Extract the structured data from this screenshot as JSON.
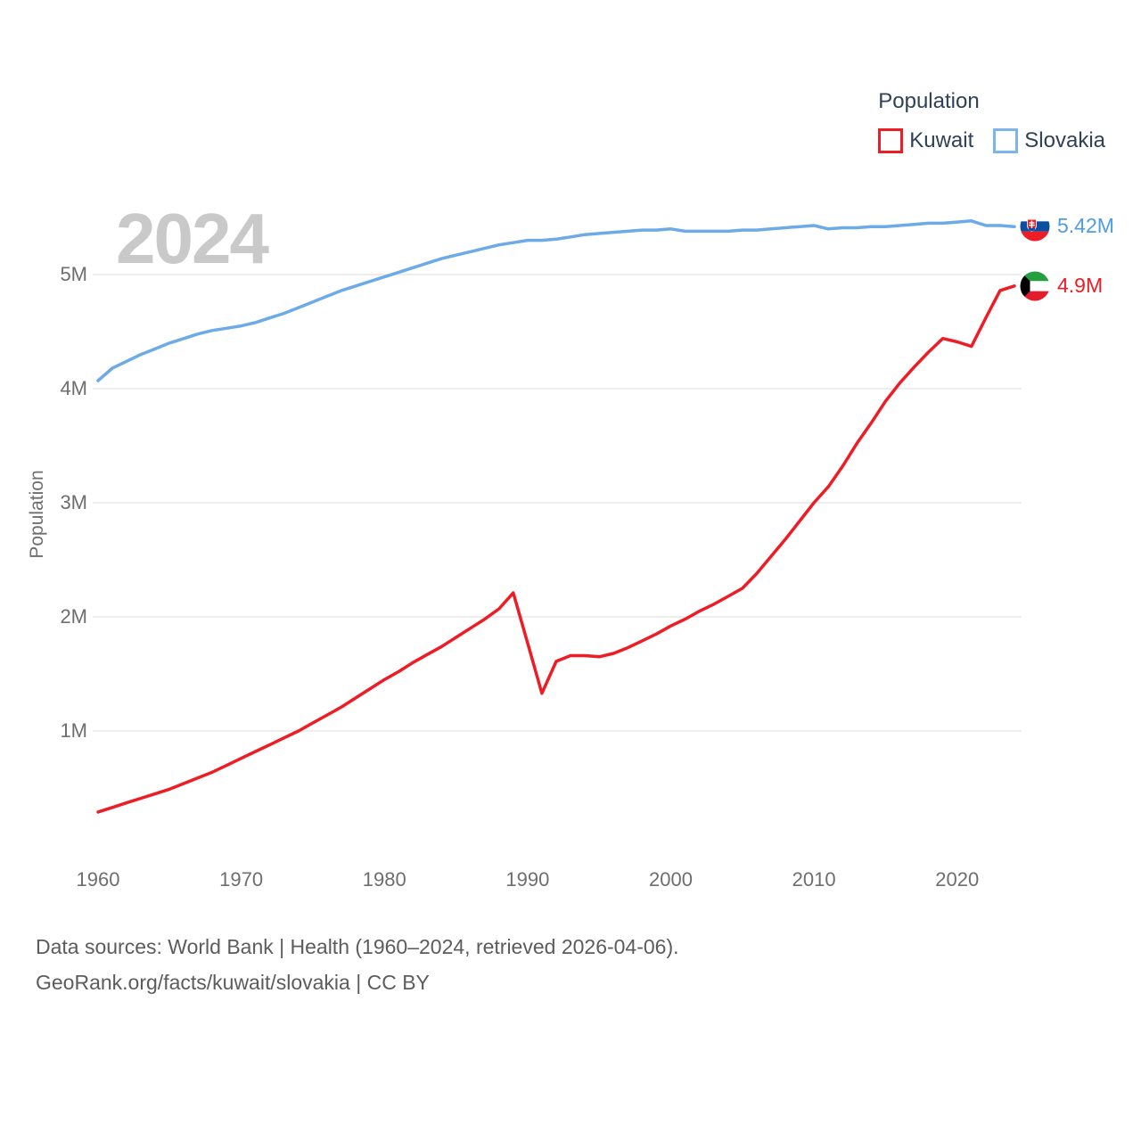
{
  "watermark": "2024",
  "legend": {
    "title": "Population",
    "items": [
      {
        "label": "Kuwait",
        "color": "#ee1c25"
      },
      {
        "label": "Slovakia",
        "color": "#7cb5ec"
      }
    ]
  },
  "chart_data": {
    "type": "line",
    "title": "Population",
    "xlabel": "",
    "ylabel": "Population",
    "grid": true,
    "legend_position": "top-right",
    "xlim": [
      1960,
      2024
    ],
    "ylim": [
      0,
      5.65
    ],
    "x_ticks": [
      1960,
      1970,
      1980,
      1990,
      2000,
      2010,
      2020
    ],
    "y_ticks": [
      "1M",
      "2M",
      "3M",
      "4M",
      "5M"
    ],
    "y_tick_values": [
      1,
      2,
      3,
      4,
      5
    ],
    "years": [
      1960,
      1961,
      1962,
      1963,
      1964,
      1965,
      1966,
      1967,
      1968,
      1969,
      1970,
      1971,
      1972,
      1973,
      1974,
      1975,
      1976,
      1977,
      1978,
      1979,
      1980,
      1981,
      1982,
      1983,
      1984,
      1985,
      1986,
      1987,
      1988,
      1989,
      1990,
      1991,
      1992,
      1993,
      1994,
      1995,
      1996,
      1997,
      1998,
      1999,
      2000,
      2001,
      2002,
      2003,
      2004,
      2005,
      2006,
      2007,
      2008,
      2009,
      2010,
      2011,
      2012,
      2013,
      2014,
      2015,
      2016,
      2017,
      2018,
      2019,
      2020,
      2021,
      2022,
      2023,
      2024
    ],
    "series": [
      {
        "name": "Kuwait",
        "flag": "kuwait",
        "color": "#ee1c25",
        "label_color": "#ee1c25",
        "end_label": "4.9M",
        "values": [
          0.29,
          0.33,
          0.37,
          0.41,
          0.45,
          0.49,
          0.54,
          0.59,
          0.64,
          0.7,
          0.76,
          0.82,
          0.88,
          0.94,
          1.0,
          1.07,
          1.14,
          1.21,
          1.29,
          1.37,
          1.45,
          1.52,
          1.6,
          1.67,
          1.74,
          1.82,
          1.9,
          1.98,
          2.07,
          2.21,
          1.77,
          1.33,
          1.61,
          1.66,
          1.66,
          1.65,
          1.68,
          1.73,
          1.79,
          1.85,
          1.92,
          1.98,
          2.05,
          2.11,
          2.18,
          2.25,
          2.38,
          2.53,
          2.68,
          2.84,
          3.0,
          3.14,
          3.32,
          3.52,
          3.7,
          3.89,
          4.05,
          4.19,
          4.32,
          4.44,
          4.41,
          4.37,
          4.62,
          4.86,
          4.9
        ]
      },
      {
        "name": "Slovakia",
        "flag": "slovakia",
        "color": "#6caae8",
        "label_color": "#4f9ce6",
        "end_label": "5.42M",
        "values": [
          4.07,
          4.18,
          4.24,
          4.3,
          4.35,
          4.4,
          4.44,
          4.48,
          4.51,
          4.53,
          4.55,
          4.58,
          4.62,
          4.66,
          4.71,
          4.76,
          4.81,
          4.86,
          4.9,
          4.94,
          4.98,
          5.02,
          5.06,
          5.1,
          5.14,
          5.17,
          5.2,
          5.23,
          5.26,
          5.28,
          5.3,
          5.3,
          5.31,
          5.33,
          5.35,
          5.36,
          5.37,
          5.38,
          5.39,
          5.39,
          5.4,
          5.38,
          5.38,
          5.38,
          5.38,
          5.39,
          5.39,
          5.4,
          5.41,
          5.42,
          5.43,
          5.4,
          5.41,
          5.41,
          5.42,
          5.42,
          5.43,
          5.44,
          5.45,
          5.45,
          5.46,
          5.47,
          5.43,
          5.43,
          5.42
        ]
      }
    ]
  },
  "footer": {
    "line1": "Data sources: World Bank | Health (1960–2024, retrieved 2026-04-06).",
    "line2": "GeoRank.org/facts/kuwait/slovakia | CC BY"
  }
}
